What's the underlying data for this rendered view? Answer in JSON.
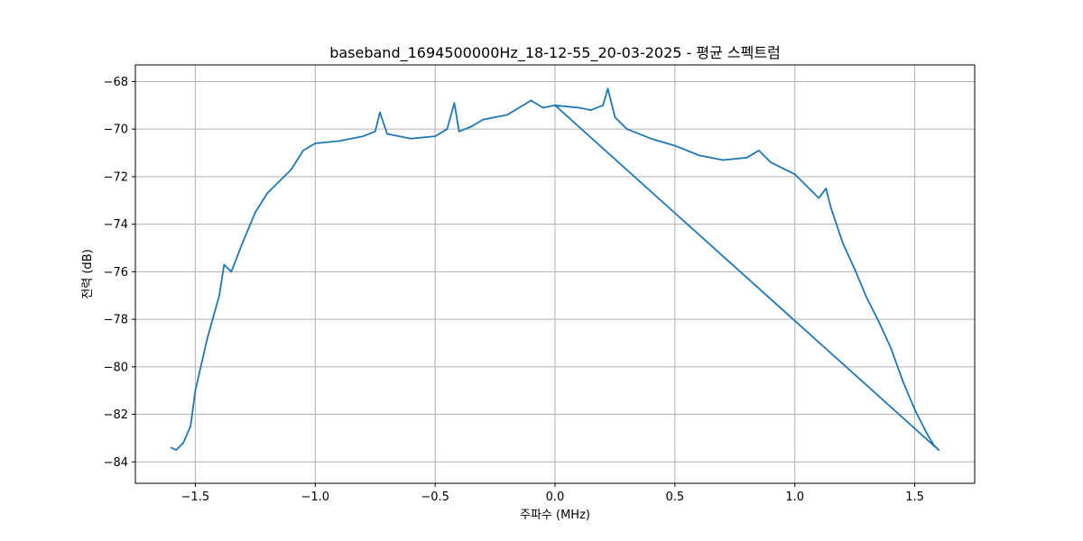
{
  "chart_data": {
    "type": "line",
    "title": "baseband_1694500000Hz_18-12-55_20-03-2025 - 평균 스펙트럼",
    "xlabel": "주파수 (MHz)",
    "ylabel": "전력 (dB)",
    "xlim": [
      -1.75,
      1.75
    ],
    "ylim": [
      -84.9,
      -67.3
    ],
    "xticks": [
      -1.5,
      -1.0,
      -0.5,
      0.0,
      0.5,
      1.0,
      1.5
    ],
    "xtick_labels": [
      "−1.5",
      "−1.0",
      "−0.5",
      "0.0",
      "0.5",
      "1.0",
      "1.5"
    ],
    "yticks": [
      -84,
      -82,
      -80,
      -78,
      -76,
      -74,
      -72,
      -70,
      -68
    ],
    "ytick_labels": [
      "−84",
      "−82",
      "−80",
      "−78",
      "−76",
      "−74",
      "−72",
      "−70",
      "−68"
    ],
    "grid": true,
    "series": [
      {
        "color": "#1f77b4",
        "x": [
          0.0,
          0.1,
          0.15,
          0.2,
          0.22,
          0.25,
          0.3,
          0.4,
          0.5,
          0.6,
          0.7,
          0.8,
          0.85,
          0.9,
          1.0,
          1.05,
          1.1,
          1.13,
          1.15,
          1.2,
          1.25,
          1.3,
          1.35,
          1.4,
          1.45,
          1.5,
          1.55,
          1.58,
          1.6,
          0.0,
          -0.05,
          -0.1,
          -0.15,
          -0.2,
          -0.3,
          -0.35,
          -0.4,
          -0.42,
          -0.45,
          -0.5,
          -0.6,
          -0.7,
          -0.73,
          -0.75,
          -0.8,
          -0.85,
          -0.9,
          -1.0,
          -1.05,
          -1.1,
          -1.2,
          -1.25,
          -1.3,
          -1.35,
          -1.38,
          -1.4,
          -1.45,
          -1.5,
          -1.52,
          -1.55,
          -1.58,
          -1.6
        ],
        "y": [
          -69.0,
          -69.1,
          -69.2,
          -69.0,
          -68.3,
          -69.5,
          -70.0,
          -70.4,
          -70.7,
          -71.1,
          -71.3,
          -71.2,
          -70.9,
          -71.4,
          -71.9,
          -72.4,
          -72.9,
          -72.5,
          -73.3,
          -74.8,
          -75.9,
          -77.1,
          -78.1,
          -79.2,
          -80.6,
          -81.8,
          -82.8,
          -83.3,
          -83.5,
          -69.0,
          -69.1,
          -68.8,
          -69.1,
          -69.4,
          -69.6,
          -69.9,
          -70.1,
          -68.9,
          -70.0,
          -70.3,
          -70.4,
          -70.2,
          -69.3,
          -70.1,
          -70.3,
          -70.4,
          -70.5,
          -70.6,
          -70.9,
          -71.7,
          -72.7,
          -73.5,
          -74.7,
          -76.0,
          -75.7,
          -77.0,
          -78.8,
          -81.0,
          -82.5,
          -83.2,
          -83.5,
          -83.4
        ]
      }
    ]
  }
}
